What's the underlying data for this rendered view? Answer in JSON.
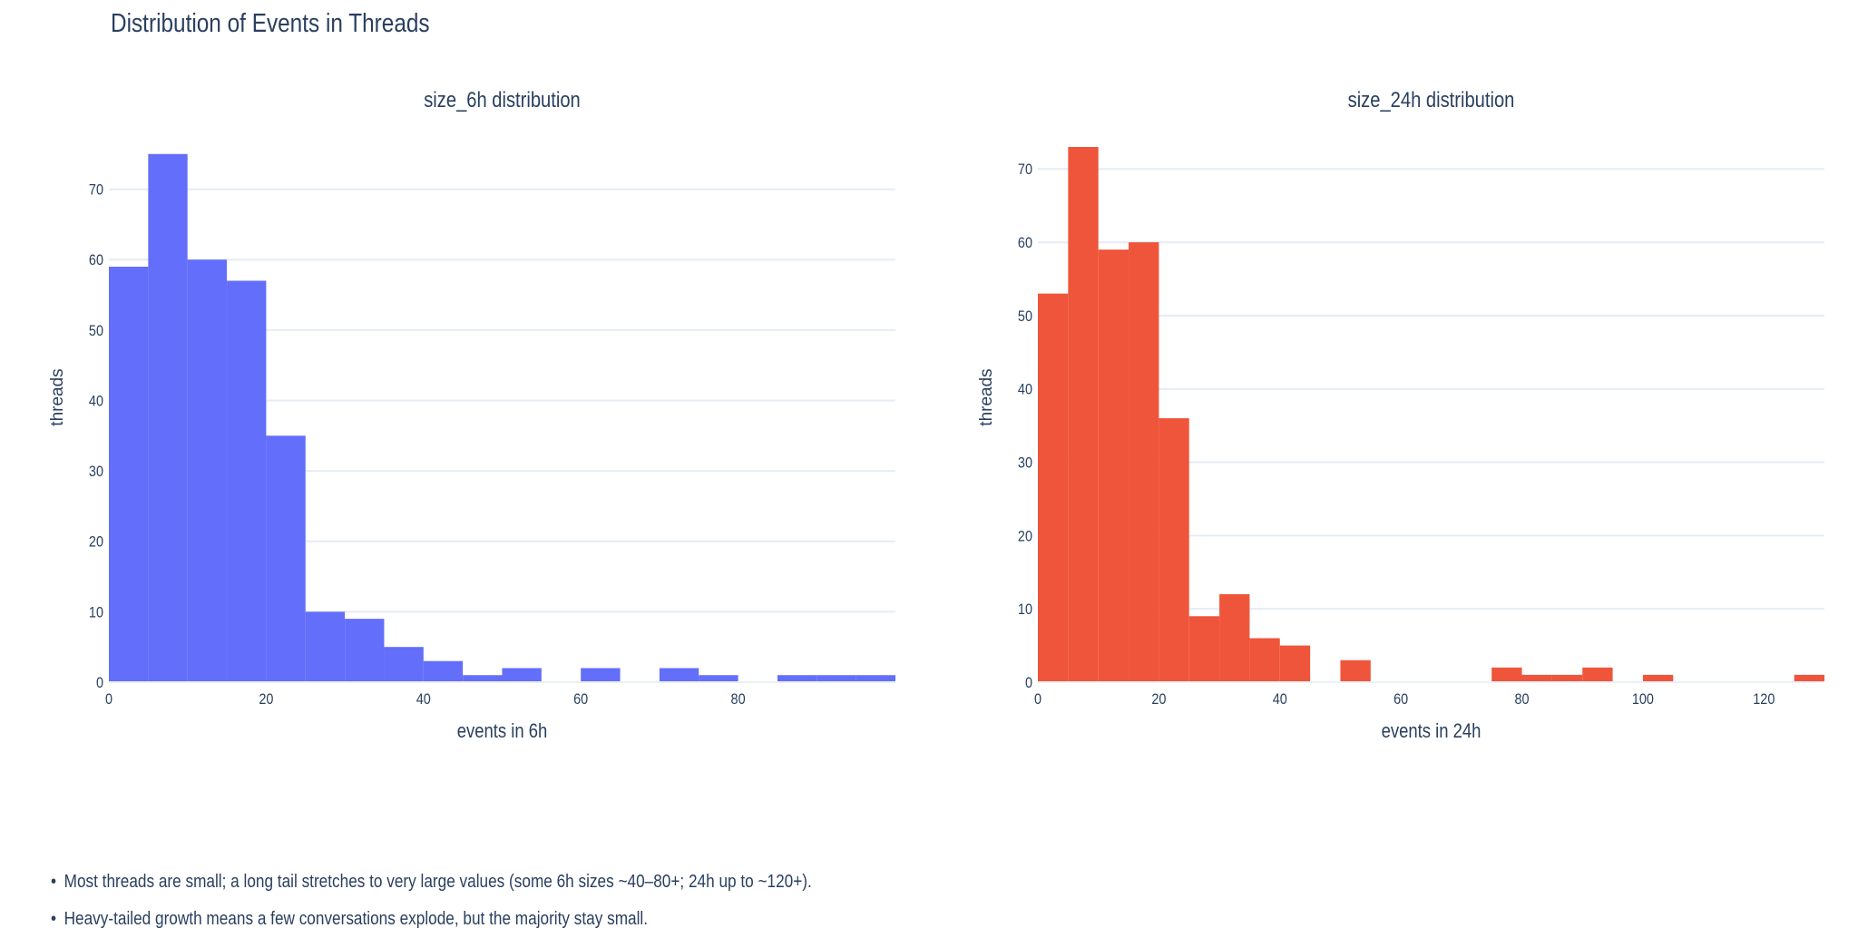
{
  "page": {
    "title": "Distribution of Events in Threads",
    "notes": [
      "Most threads are small; a long tail stretches to very large values (some 6h sizes ~40–80+; 24h up to ~120+).",
      "Heavy-tailed growth means a few conversations explode, but the majority stay small."
    ]
  },
  "chart_data": [
    {
      "type": "bar",
      "title": "size_6h distribution",
      "xlabel": "events in 6h",
      "ylabel": "threads",
      "color": "#636efa",
      "xlim": [
        0,
        100
      ],
      "ylim": [
        0,
        76
      ],
      "xticks": [
        0,
        20,
        40,
        60,
        80
      ],
      "yticks": [
        0,
        10,
        20,
        30,
        40,
        50,
        60,
        70
      ],
      "grid": true,
      "bins": [
        {
          "x0": 0,
          "x1": 5,
          "count": 59
        },
        {
          "x0": 5,
          "x1": 10,
          "count": 75
        },
        {
          "x0": 10,
          "x1": 15,
          "count": 60
        },
        {
          "x0": 15,
          "x1": 20,
          "count": 57
        },
        {
          "x0": 20,
          "x1": 25,
          "count": 35
        },
        {
          "x0": 25,
          "x1": 30,
          "count": 10
        },
        {
          "x0": 30,
          "x1": 35,
          "count": 9
        },
        {
          "x0": 35,
          "x1": 40,
          "count": 5
        },
        {
          "x0": 40,
          "x1": 45,
          "count": 3
        },
        {
          "x0": 45,
          "x1": 50,
          "count": 1
        },
        {
          "x0": 50,
          "x1": 55,
          "count": 2
        },
        {
          "x0": 60,
          "x1": 65,
          "count": 2
        },
        {
          "x0": 70,
          "x1": 75,
          "count": 2
        },
        {
          "x0": 75,
          "x1": 80,
          "count": 1
        },
        {
          "x0": 85,
          "x1": 90,
          "count": 1
        },
        {
          "x0": 90,
          "x1": 95,
          "count": 1
        },
        {
          "x0": 95,
          "x1": 100,
          "count": 1
        }
      ]
    },
    {
      "type": "bar",
      "title": "size_24h distribution",
      "xlabel": "events in 24h",
      "ylabel": "threads",
      "color": "#ef553b",
      "xlim": [
        0,
        130
      ],
      "ylim": [
        0,
        73
      ],
      "xticks": [
        0,
        20,
        40,
        60,
        80,
        100,
        120
      ],
      "yticks": [
        0,
        10,
        20,
        30,
        40,
        50,
        60,
        70
      ],
      "grid": true,
      "bins": [
        {
          "x0": 0,
          "x1": 5,
          "count": 53
        },
        {
          "x0": 5,
          "x1": 10,
          "count": 73
        },
        {
          "x0": 10,
          "x1": 15,
          "count": 59
        },
        {
          "x0": 15,
          "x1": 20,
          "count": 60
        },
        {
          "x0": 20,
          "x1": 25,
          "count": 36
        },
        {
          "x0": 25,
          "x1": 30,
          "count": 9
        },
        {
          "x0": 30,
          "x1": 35,
          "count": 12
        },
        {
          "x0": 35,
          "x1": 40,
          "count": 6
        },
        {
          "x0": 40,
          "x1": 45,
          "count": 5
        },
        {
          "x0": 50,
          "x1": 55,
          "count": 3
        },
        {
          "x0": 75,
          "x1": 80,
          "count": 2
        },
        {
          "x0": 80,
          "x1": 85,
          "count": 1
        },
        {
          "x0": 85,
          "x1": 90,
          "count": 1
        },
        {
          "x0": 90,
          "x1": 95,
          "count": 2
        },
        {
          "x0": 100,
          "x1": 105,
          "count": 1
        },
        {
          "x0": 125,
          "x1": 130,
          "count": 1
        }
      ]
    }
  ]
}
